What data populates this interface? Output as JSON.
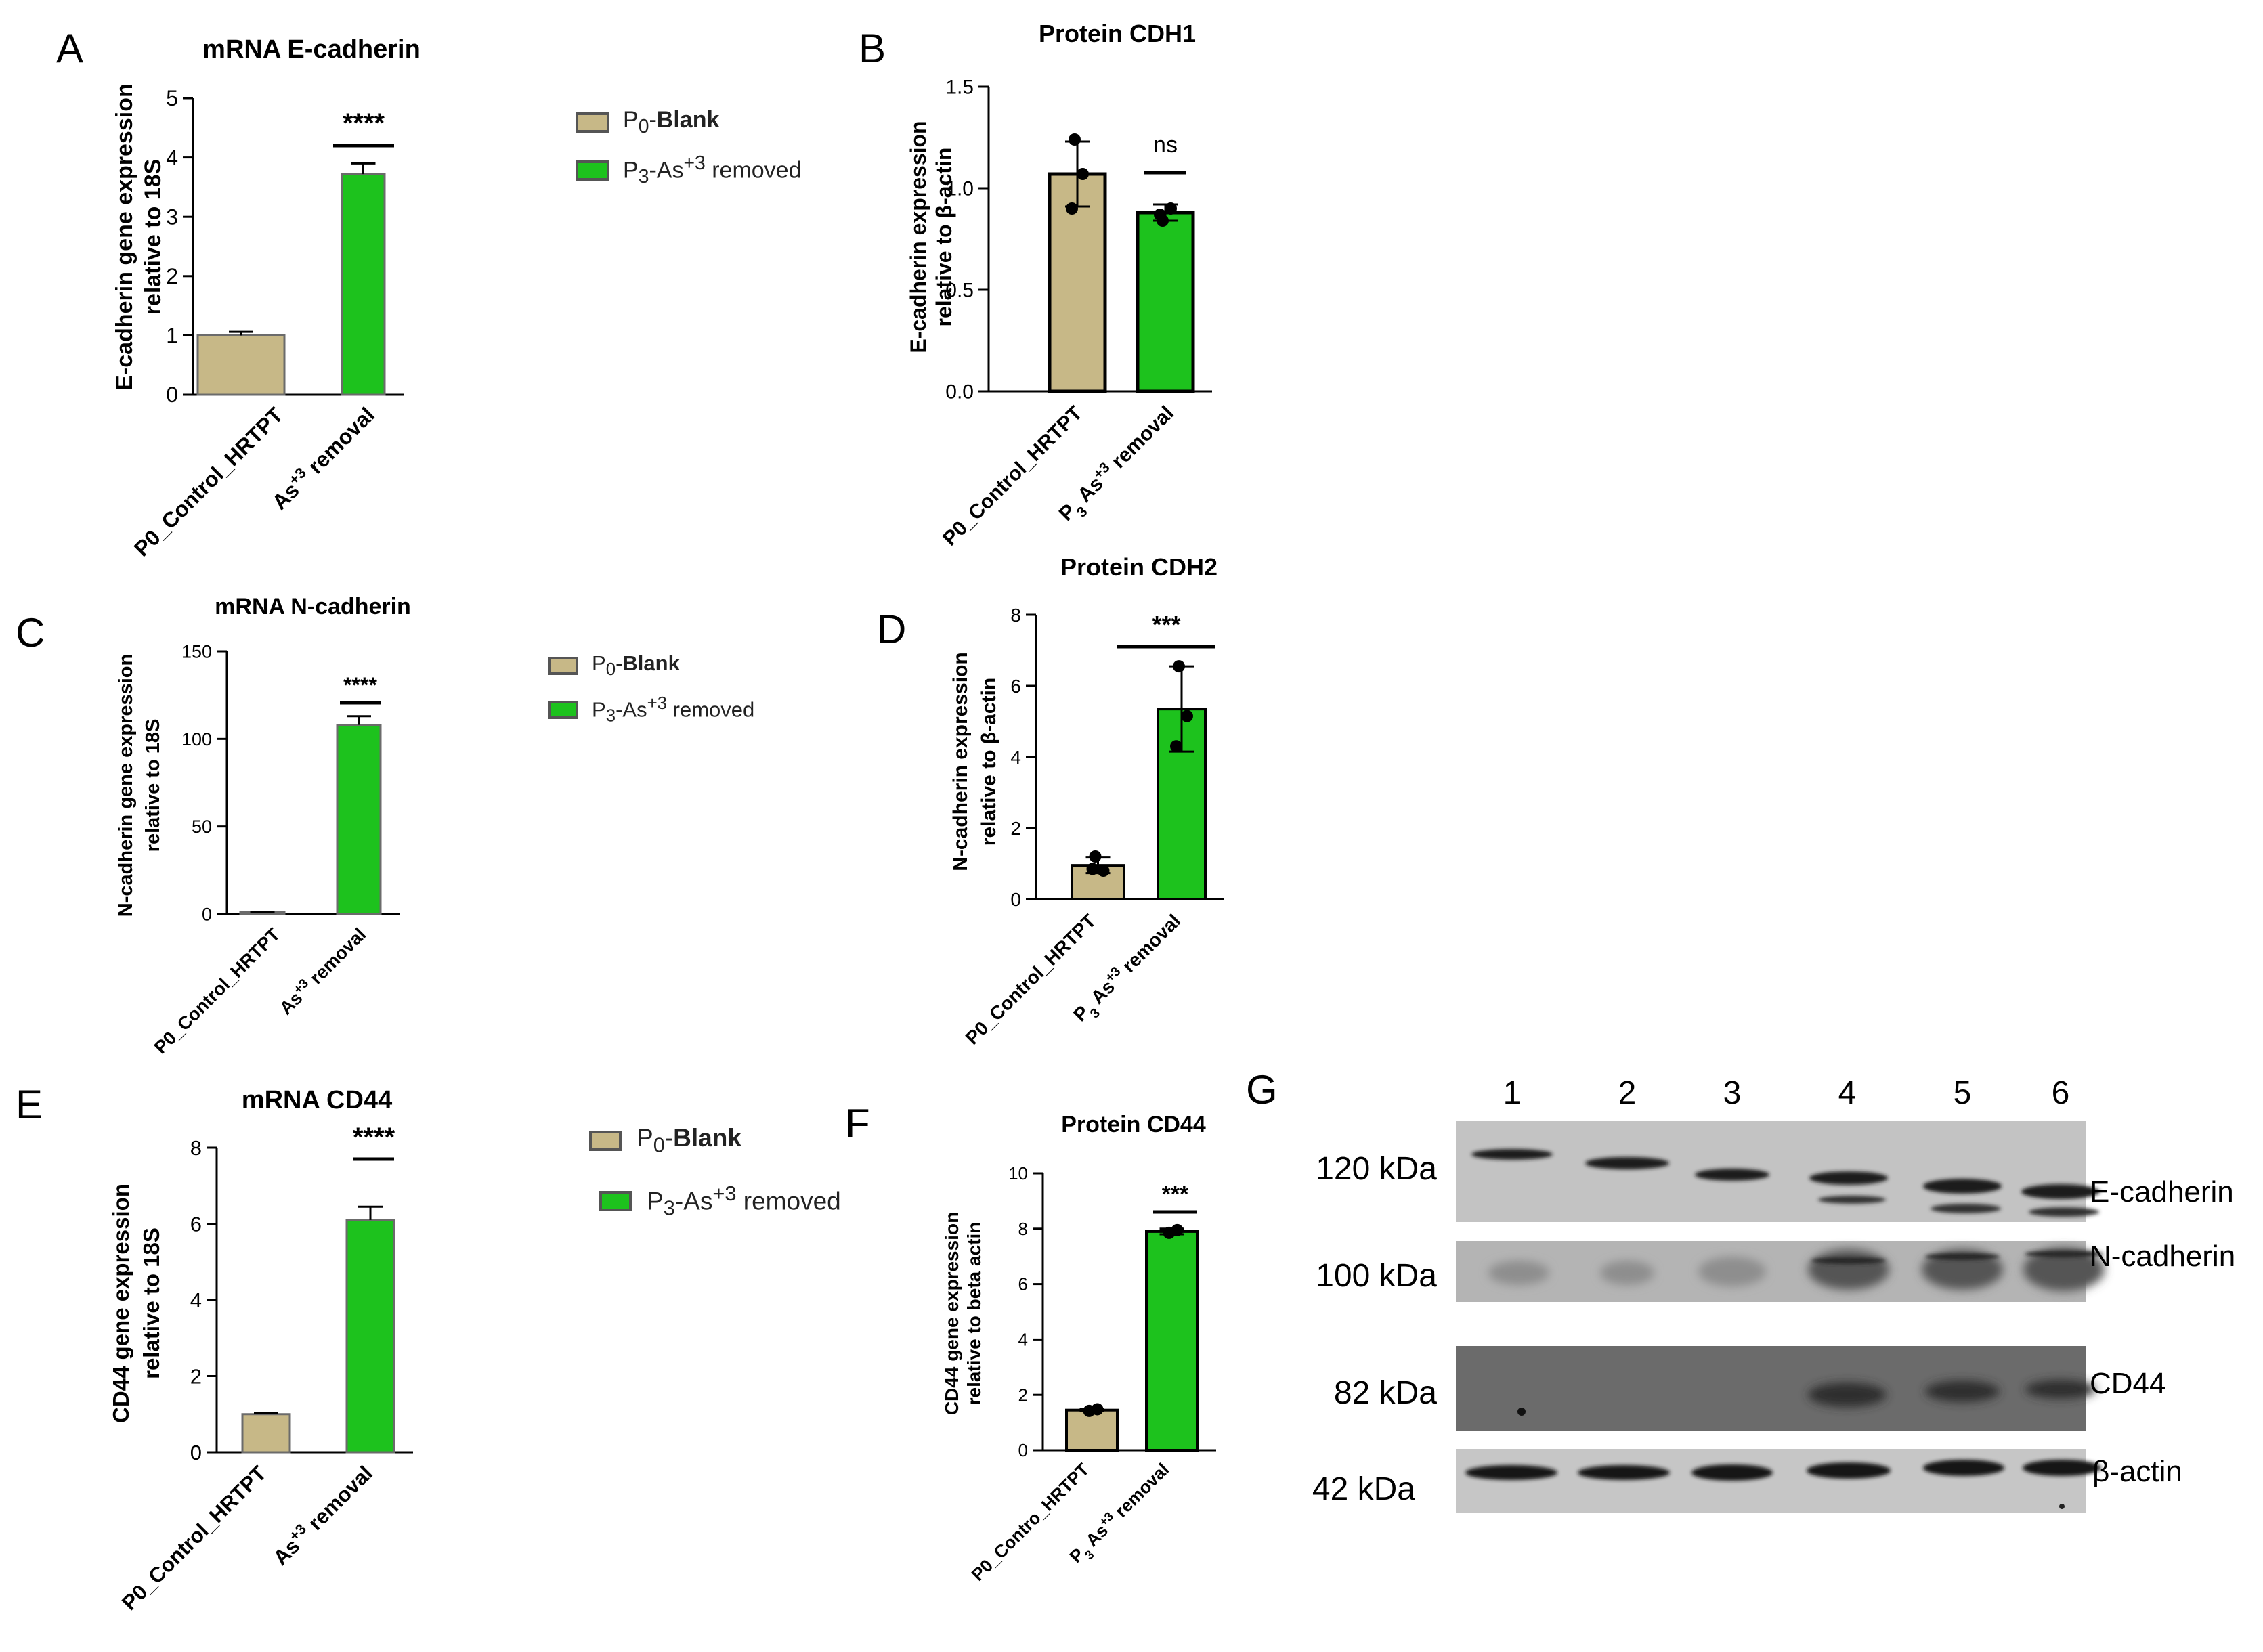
{
  "colors": {
    "control": "#C7B887",
    "treated": "#1DC21D",
    "ink": "#000000"
  },
  "panels": {
    "A": {
      "letter": "A"
    },
    "B": {
      "letter": "B"
    },
    "C": {
      "letter": "C"
    },
    "D": {
      "letter": "D"
    },
    "E": {
      "letter": "E"
    },
    "F": {
      "letter": "F"
    },
    "G": {
      "letter": "G"
    }
  },
  "legends": {
    "A": {
      "ctrl_sub": "0",
      "ctrl_bold": "Blank",
      "trt_sub": "3",
      "trt_sup": "+3",
      "trt_rest": " removed"
    },
    "C": {
      "ctrl_sub": "0",
      "ctrl_bold": "Blank",
      "trt_sub": "3",
      "trt_sup": "+3",
      "trt_rest": " removed"
    },
    "E": {
      "ctrl_sub": "0",
      "ctrl_bold": "Blank",
      "trt_sub": "3",
      "trt_sup": "+3",
      "trt_rest": " removed"
    }
  },
  "chart_data": [
    {
      "id": "A",
      "type": "bar",
      "title": "mRNA E-cadherin",
      "ylabel": [
        "E-cadherin gene expression",
        "relative to 18S"
      ],
      "ylim": [
        0,
        5
      ],
      "ticks": [
        "0",
        "1",
        "2",
        "3",
        "4",
        "5"
      ],
      "categories": [
        "P0_Control_HRTPT",
        "As+3 removal"
      ],
      "values": [
        1.0,
        3.72
      ],
      "errors": [
        0.06,
        0.18
      ],
      "significance": "****",
      "points": []
    },
    {
      "id": "B",
      "type": "bar",
      "title": "Protein CDH1",
      "ylabel": [
        "E-cadherin expression",
        "relative to β-actin"
      ],
      "ylim": [
        0,
        1.5
      ],
      "ticks": [
        "0.0",
        "0.5",
        "1.0",
        "1.5"
      ],
      "categories": [
        "P0_Control_HRTPT",
        "P3 As+3 removal"
      ],
      "values": [
        1.07,
        0.88
      ],
      "errors": [
        0.16,
        0.04
      ],
      "significance": "ns",
      "points": [
        [
          1.24,
          1.07,
          0.9
        ],
        [
          0.84,
          0.9,
          0.87
        ]
      ]
    },
    {
      "id": "C",
      "type": "bar",
      "title": "mRNA N-cadherin",
      "ylabel": [
        "N-cadherin gene expression",
        "relative to 18S"
      ],
      "ylim": [
        0,
        150
      ],
      "ticks": [
        "0",
        "50",
        "100",
        "150"
      ],
      "categories": [
        "P0_Control_HRTPT",
        "As+3 removal"
      ],
      "values": [
        1.0,
        108
      ],
      "errors": [
        0.3,
        5
      ],
      "significance": "****",
      "points": []
    },
    {
      "id": "D",
      "type": "bar",
      "title": "Protein CDH2",
      "ylabel": [
        "N-cadherin expression",
        "relative to β-actin"
      ],
      "ylim": [
        0,
        8
      ],
      "ticks": [
        "0",
        "2",
        "4",
        "6",
        "8"
      ],
      "categories": [
        "P0_Control_HRTPT",
        "P3 As+3 removal"
      ],
      "values": [
        0.95,
        5.35
      ],
      "errors": [
        0.22,
        1.2
      ],
      "significance": "***",
      "points": [
        [
          1.2,
          0.8,
          0.85
        ],
        [
          6.55,
          5.15,
          4.3
        ]
      ]
    },
    {
      "id": "E",
      "type": "bar",
      "title": "mRNA CD44",
      "ylabel": [
        "CD44 gene expression",
        "relative to 18S"
      ],
      "ylim": [
        0,
        8
      ],
      "ticks": [
        "0",
        "2",
        "4",
        "6",
        "8"
      ],
      "categories": [
        "P0_Control_HRTPT",
        "As+3 removal"
      ],
      "values": [
        1.0,
        6.1
      ],
      "errors": [
        0.04,
        0.35
      ],
      "significance": "****",
      "points": []
    },
    {
      "id": "F",
      "type": "bar",
      "title": "Protein CD44",
      "ylabel": [
        "CD44 gene expression",
        "relative to beta actin"
      ],
      "ylim": [
        0,
        10
      ],
      "ticks": [
        "0",
        "2",
        "4",
        "6",
        "8",
        "10"
      ],
      "categories": [
        "P0_Contro_HRTPT",
        "P3 As+3 removal"
      ],
      "values": [
        1.45,
        7.9
      ],
      "errors": [
        0.03,
        0.1
      ],
      "significance": "***",
      "points": [
        [
          1.42,
          1.48
        ],
        [
          7.85,
          7.95
        ]
      ]
    }
  ],
  "blot": {
    "lanes": [
      "1",
      "2",
      "3",
      "4",
      "5",
      "6"
    ],
    "rows": [
      {
        "mw": "120 kDa",
        "protein": "E-cadherin"
      },
      {
        "mw": "100 kDa",
        "protein": "N-cadherin"
      },
      {
        "mw": "82 kDa",
        "protein": "CD44"
      },
      {
        "mw": "42 kDa",
        "protein": "β-actin"
      }
    ]
  }
}
